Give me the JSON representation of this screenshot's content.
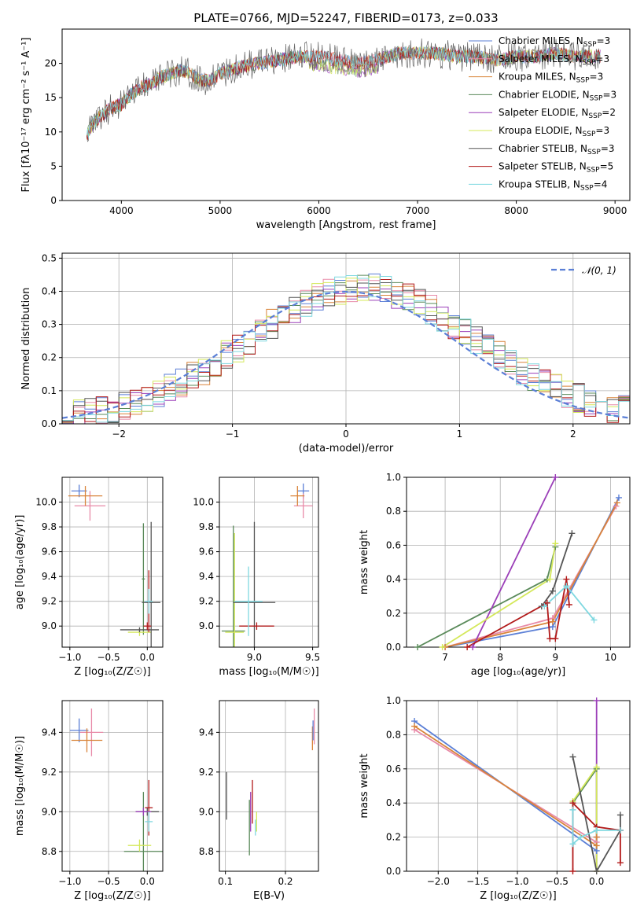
{
  "figure_title": "PLATE=0766, MJD=52247, FIBERID=0173, z=0.033",
  "series_colors": {
    "chabrier_miles": "#5b7fd6",
    "salpeter_miles": "#e88aa8",
    "kroupa_miles": "#d9843a",
    "chabrier_elodie": "#5a8a5a",
    "salpeter_elodie": "#9b3fb8",
    "kroupa_elodie": "#d4e85a",
    "chabrier_stelib": "#555555",
    "salpeter_stelib": "#b21a1a",
    "kroupa_stelib": "#7fd8e0"
  },
  "chart_data": [
    {
      "id": "spectrum",
      "type": "line",
      "xlabel": "wavelength [Angstrom, rest frame]",
      "ylabel": "Flux [fλ10⁻¹⁷ erg cm⁻² s⁻¹ A⁻¹]",
      "xlim": [
        3400,
        9150
      ],
      "ylim": [
        0,
        25
      ],
      "xticks": [
        4000,
        5000,
        6000,
        7000,
        8000,
        9000
      ],
      "yticks": [
        0,
        5,
        10,
        15,
        20
      ],
      "grid": false,
      "legend_position": "right",
      "legend": [
        {
          "key": "chabrier_miles",
          "label": "Chabrier MILES, N",
          "sub": "SSP",
          "suffix": "=3"
        },
        {
          "key": "salpeter_miles",
          "label": "Salpeter MILES, N",
          "sub": "SSP",
          "suffix": "=3"
        },
        {
          "key": "kroupa_miles",
          "label": "Kroupa MILES, N",
          "sub": "SSP",
          "suffix": "=3"
        },
        {
          "key": "chabrier_elodie",
          "label": "Chabrier ELODIE, N",
          "sub": "SSP",
          "suffix": "=3"
        },
        {
          "key": "salpeter_elodie",
          "label": "Salpeter ELODIE, N",
          "sub": "SSP",
          "suffix": "=2"
        },
        {
          "key": "kroupa_elodie",
          "label": "Kroupa ELODIE, N",
          "sub": "SSP",
          "suffix": "=3"
        },
        {
          "key": "chabrier_stelib",
          "label": "Chabrier STELIB, N",
          "sub": "SSP",
          "suffix": "=3"
        },
        {
          "key": "salpeter_stelib",
          "label": "Salpeter STELIB, N",
          "sub": "SSP",
          "suffix": "=5"
        },
        {
          "key": "kroupa_stelib",
          "label": "Kroupa STELIB, N",
          "sub": "SSP",
          "suffix": "=4"
        }
      ],
      "continuum": [
        [
          3650,
          9.5
        ],
        [
          3700,
          11
        ],
        [
          3800,
          12.5
        ],
        [
          3900,
          13.5
        ],
        [
          4000,
          14
        ],
        [
          4100,
          15.5
        ],
        [
          4200,
          16.5
        ],
        [
          4300,
          17
        ],
        [
          4400,
          18
        ],
        [
          4500,
          18.5
        ],
        [
          4600,
          19
        ],
        [
          4700,
          18.5
        ],
        [
          4800,
          17.5
        ],
        [
          4900,
          17.5
        ],
        [
          5000,
          18.5
        ],
        [
          5200,
          19.5
        ],
        [
          5400,
          20
        ],
        [
          5600,
          20.5
        ],
        [
          5800,
          21
        ],
        [
          6000,
          21
        ],
        [
          6200,
          20.5
        ],
        [
          6400,
          20
        ],
        [
          6600,
          20.5
        ],
        [
          6800,
          21.5
        ],
        [
          7000,
          21.5
        ],
        [
          7200,
          21.5
        ],
        [
          7400,
          21
        ],
        [
          7600,
          21
        ],
        [
          7800,
          20.5
        ],
        [
          8000,
          21
        ],
        [
          8200,
          21
        ],
        [
          8400,
          21.5
        ],
        [
          8600,
          21
        ],
        [
          8800,
          21
        ]
      ]
    },
    {
      "id": "residuals",
      "type": "histogram",
      "xlabel": "(data-model)/error",
      "ylabel": "Normed distribution",
      "xlim": [
        -2.5,
        2.5
      ],
      "ylim": [
        0,
        0.515
      ],
      "xticks": [
        -2,
        -1,
        0,
        1,
        2
      ],
      "yticks": [
        0.0,
        0.1,
        0.2,
        0.3,
        0.4,
        0.5
      ],
      "grid": true,
      "bin_edges": [
        -2.5,
        2.5
      ],
      "bins": 50,
      "normal_curve_label": "𝒩(0, 1)",
      "normal_curve_color": "#5b7fd6",
      "legend_position": "upper right"
    },
    {
      "id": "age_vs_Z",
      "type": "errorbar",
      "xlabel": "Z [log₁₀(Z/Z☉)]",
      "ylabel": "age  [log₁₀(age/yr)]",
      "xlim": [
        -1.1,
        0.2
      ],
      "ylim": [
        8.83,
        10.2
      ],
      "xticks": [
        -1.0,
        -0.5,
        0.0
      ],
      "yticks": [
        9.0,
        9.2,
        9.4,
        9.6,
        9.8,
        10.0
      ],
      "grid": true,
      "points": [
        {
          "key": "chabrier_miles",
          "x": -0.88,
          "y": 10.09,
          "xerr": 0.1,
          "yerr": 0.05
        },
        {
          "key": "salpeter_miles",
          "x": -0.74,
          "y": 9.97,
          "xerr": 0.2,
          "yerr": 0.12
        },
        {
          "key": "kroupa_miles",
          "x": -0.8,
          "y": 10.05,
          "xerr": 0.22,
          "yerr": 0.08
        },
        {
          "key": "chabrier_elodie",
          "x": -0.05,
          "y": 9.38,
          "xerr": 0.02,
          "yerr": 0.45
        },
        {
          "key": "kroupa_elodie",
          "x": -0.1,
          "y": 8.95,
          "xerr": 0.15,
          "yerr": 0.03
        },
        {
          "key": "chabrier_stelib",
          "x": -0.1,
          "y": 8.97,
          "xerr": 0.25,
          "yerr": 0.02
        },
        {
          "key": "chabrier_stelib",
          "x": 0.05,
          "y": 9.19,
          "xerr": 0.12,
          "yerr": 0.65
        },
        {
          "key": "salpeter_stelib",
          "x": 0.0,
          "y": 9.0,
          "xerr": 0.05,
          "yerr": 0.03
        },
        {
          "key": "salpeter_stelib",
          "x": 0.02,
          "y": 9.2,
          "xerr": 0.02,
          "yerr": 0.25
        },
        {
          "key": "kroupa_stelib",
          "x": 0.02,
          "y": 9.2,
          "xerr": 0.05,
          "yerr": 0.1
        }
      ]
    },
    {
      "id": "age_vs_mass",
      "type": "errorbar",
      "xlabel": "mass [log₁₀(M/M☉)]",
      "ylabel": "",
      "xlim": [
        8.7,
        9.55
      ],
      "ylim": [
        8.83,
        10.2
      ],
      "xticks": [
        9.0,
        9.5
      ],
      "yticks": [
        9.0,
        9.2,
        9.4,
        9.6,
        9.8,
        10.0
      ],
      "grid": true,
      "points": [
        {
          "key": "chabrier_miles",
          "x": 9.42,
          "y": 10.09,
          "xerr": 0.05,
          "yerr": 0.06
        },
        {
          "key": "salpeter_miles",
          "x": 9.42,
          "y": 9.97,
          "xerr": 0.08,
          "yerr": 0.1
        },
        {
          "key": "kroupa_miles",
          "x": 9.37,
          "y": 10.05,
          "xerr": 0.06,
          "yerr": 0.08
        },
        {
          "key": "chabrier_elodie",
          "x": 8.82,
          "y": 8.96,
          "xerr": 0.1,
          "yerr": 0.85
        },
        {
          "key": "kroupa_elodie",
          "x": 8.83,
          "y": 8.95,
          "xerr": 0.08,
          "yerr": 0.8
        },
        {
          "key": "chabrier_stelib",
          "x": 9.0,
          "y": 9.19,
          "xerr": 0.18,
          "yerr": 0.65
        },
        {
          "key": "salpeter_stelib",
          "x": 9.02,
          "y": 9.0,
          "xerr": 0.15,
          "yerr": 0.03
        },
        {
          "key": "kroupa_stelib",
          "x": 8.95,
          "y": 9.2,
          "xerr": 0.12,
          "yerr": 0.28
        }
      ]
    },
    {
      "id": "weight_vs_age",
      "type": "line",
      "xlabel": "age  [log₁₀(age/yr)]",
      "ylabel": "mass weight",
      "xlim": [
        6.3,
        10.35
      ],
      "ylim": [
        0,
        1
      ],
      "xticks": [
        7,
        8,
        9,
        10
      ],
      "yticks": [
        0.0,
        0.2,
        0.4,
        0.6,
        0.8,
        1.0
      ],
      "grid": true,
      "series": [
        {
          "key": "chabrier_miles",
          "x": [
            7.0,
            8.95,
            10.15
          ],
          "y": [
            0.0,
            0.12,
            0.88
          ]
        },
        {
          "key": "salpeter_miles",
          "x": [
            7.0,
            8.95,
            10.1
          ],
          "y": [
            0.0,
            0.17,
            0.83
          ]
        },
        {
          "key": "kroupa_miles",
          "x": [
            7.0,
            8.95,
            10.12
          ],
          "y": [
            0.0,
            0.15,
            0.85
          ]
        },
        {
          "key": "chabrier_elodie",
          "x": [
            6.5,
            8.85,
            9.0
          ],
          "y": [
            0.0,
            0.4,
            0.59
          ]
        },
        {
          "key": "salpeter_elodie",
          "x": [
            7.5,
            9.0
          ],
          "y": [
            0.0,
            1.0
          ]
        },
        {
          "key": "kroupa_elodie",
          "x": [
            6.95,
            8.9,
            9.0
          ],
          "y": [
            0.0,
            0.4,
            0.61
          ]
        },
        {
          "key": "chabrier_stelib",
          "x": [
            8.75,
            8.95,
            9.3
          ],
          "y": [
            0.24,
            0.33,
            0.67
          ]
        },
        {
          "key": "salpeter_stelib",
          "x": [
            7.4,
            8.85,
            8.9,
            9.0,
            9.2,
            9.25
          ],
          "y": [
            0.0,
            0.26,
            0.05,
            0.05,
            0.4,
            0.25
          ]
        },
        {
          "key": "kroupa_stelib",
          "x": [
            8.8,
            9.2,
            9.7
          ],
          "y": [
            0.24,
            0.36,
            0.16
          ]
        }
      ]
    },
    {
      "id": "mass_vs_Z",
      "type": "errorbar",
      "xlabel": "Z [log₁₀(Z/Z☉)]",
      "ylabel": "mass [log₁₀(M/M☉)]",
      "xlim": [
        -1.1,
        0.2
      ],
      "ylim": [
        8.7,
        9.56
      ],
      "xticks": [
        -1.0,
        -0.5,
        0.0
      ],
      "yticks": [
        8.8,
        9.0,
        9.2,
        9.4
      ],
      "grid": true,
      "points": [
        {
          "key": "chabrier_miles",
          "x": -0.88,
          "y": 9.41,
          "xerr": 0.12,
          "yerr": 0.06
        },
        {
          "key": "salpeter_miles",
          "x": -0.72,
          "y": 9.4,
          "xerr": 0.15,
          "yerr": 0.12
        },
        {
          "key": "kroupa_miles",
          "x": -0.78,
          "y": 9.36,
          "xerr": 0.2,
          "yerr": 0.06
        },
        {
          "key": "chabrier_elodie",
          "x": -0.05,
          "y": 8.8,
          "xerr": 0.25,
          "yerr": 0.3
        },
        {
          "key": "kroupa_elodie",
          "x": -0.1,
          "y": 8.83,
          "xerr": 0.15,
          "yerr": 0.03
        },
        {
          "key": "chabrier_stelib",
          "x": 0.0,
          "y": 9.0,
          "xerr": 0.15,
          "yerr": 0.02
        },
        {
          "key": "salpeter_stelib",
          "x": 0.02,
          "y": 9.02,
          "xerr": 0.05,
          "yerr": 0.14
        },
        {
          "key": "salpeter_elodie",
          "x": -0.05,
          "y": 9.0,
          "xerr": 0.1,
          "yerr": 0.02
        },
        {
          "key": "kroupa_stelib",
          "x": 0.02,
          "y": 8.95,
          "xerr": 0.05,
          "yerr": 0.05
        }
      ]
    },
    {
      "id": "mass_vs_ebv",
      "type": "errorbar",
      "xlabel": "E(B-V)",
      "ylabel": "",
      "xlim": [
        0.09,
        0.255
      ],
      "ylim": [
        8.7,
        9.56
      ],
      "xticks": [
        0.1,
        0.2
      ],
      "yticks": [
        8.8,
        9.0,
        9.2,
        9.4
      ],
      "grid": true,
      "points": [
        {
          "key": "chabrier_stelib",
          "x": 0.102,
          "y": 9.08,
          "xerr": 0,
          "yerr": 0.12
        },
        {
          "key": "chabrier_elodie",
          "x": 0.14,
          "y": 8.92,
          "xerr": 0,
          "yerr": 0.14
        },
        {
          "key": "salpeter_elodie",
          "x": 0.142,
          "y": 9.0,
          "xerr": 0,
          "yerr": 0.1
        },
        {
          "key": "salpeter_stelib",
          "x": 0.145,
          "y": 9.05,
          "xerr": 0,
          "yerr": 0.11
        },
        {
          "key": "kroupa_elodie",
          "x": 0.152,
          "y": 8.95,
          "xerr": 0,
          "yerr": 0.05
        },
        {
          "key": "kroupa_stelib",
          "x": 0.15,
          "y": 8.92,
          "xerr": 0,
          "yerr": 0.04
        },
        {
          "key": "kroupa_miles",
          "x": 0.245,
          "y": 9.37,
          "xerr": 0,
          "yerr": 0.06
        },
        {
          "key": "salpeter_miles",
          "x": 0.248,
          "y": 9.43,
          "xerr": 0,
          "yerr": 0.09
        },
        {
          "key": "chabrier_miles",
          "x": 0.246,
          "y": 9.41,
          "xerr": 0,
          "yerr": 0.05
        }
      ]
    },
    {
      "id": "weight_vs_Z",
      "type": "line",
      "xlabel": "Z [log₁₀(Z/Z☉)]",
      "ylabel": "mass weight",
      "xlim": [
        -2.4,
        0.42
      ],
      "ylim": [
        0,
        1
      ],
      "xticks": [
        -2.0,
        -1.5,
        -1.0,
        -0.5,
        0.0
      ],
      "yticks": [
        0.0,
        0.2,
        0.4,
        0.6,
        0.8,
        1.0
      ],
      "grid": true,
      "series": [
        {
          "key": "chabrier_miles",
          "x": [
            -2.3,
            0.0,
            0.0
          ],
          "y": [
            0.88,
            0.12,
            0.2
          ]
        },
        {
          "key": "salpeter_miles",
          "x": [
            -2.3,
            0.0,
            0.0
          ],
          "y": [
            0.83,
            0.17,
            0.2
          ]
        },
        {
          "key": "kroupa_miles",
          "x": [
            -2.3,
            0.0,
            0.0
          ],
          "y": [
            0.85,
            0.15,
            0.2
          ]
        },
        {
          "key": "chabrier_elodie",
          "x": [
            -0.3,
            0.0,
            0.0
          ],
          "y": [
            0.4,
            0.6,
            0.0
          ]
        },
        {
          "key": "salpeter_elodie",
          "x": [
            0.0,
            0.0
          ],
          "y": [
            0.0,
            1.0
          ]
        },
        {
          "key": "kroupa_elodie",
          "x": [
            -0.3,
            0.0,
            0.0
          ],
          "y": [
            0.41,
            0.61,
            0.0
          ]
        },
        {
          "key": "chabrier_stelib",
          "x": [
            -0.3,
            0.0,
            0.3,
            0.3
          ],
          "y": [
            0.67,
            0.0,
            0.24,
            0.33
          ]
        },
        {
          "key": "salpeter_stelib",
          "x": [
            -0.3,
            -0.3,
            0.0,
            0.3,
            0.3
          ],
          "y": [
            0.0,
            0.4,
            0.26,
            0.24,
            0.05
          ]
        },
        {
          "key": "kroupa_stelib",
          "x": [
            -0.3,
            -0.3,
            -0.2,
            0.0,
            0.3
          ],
          "y": [
            0.36,
            0.16,
            0.2,
            0.24,
            0.24
          ]
        }
      ]
    }
  ]
}
